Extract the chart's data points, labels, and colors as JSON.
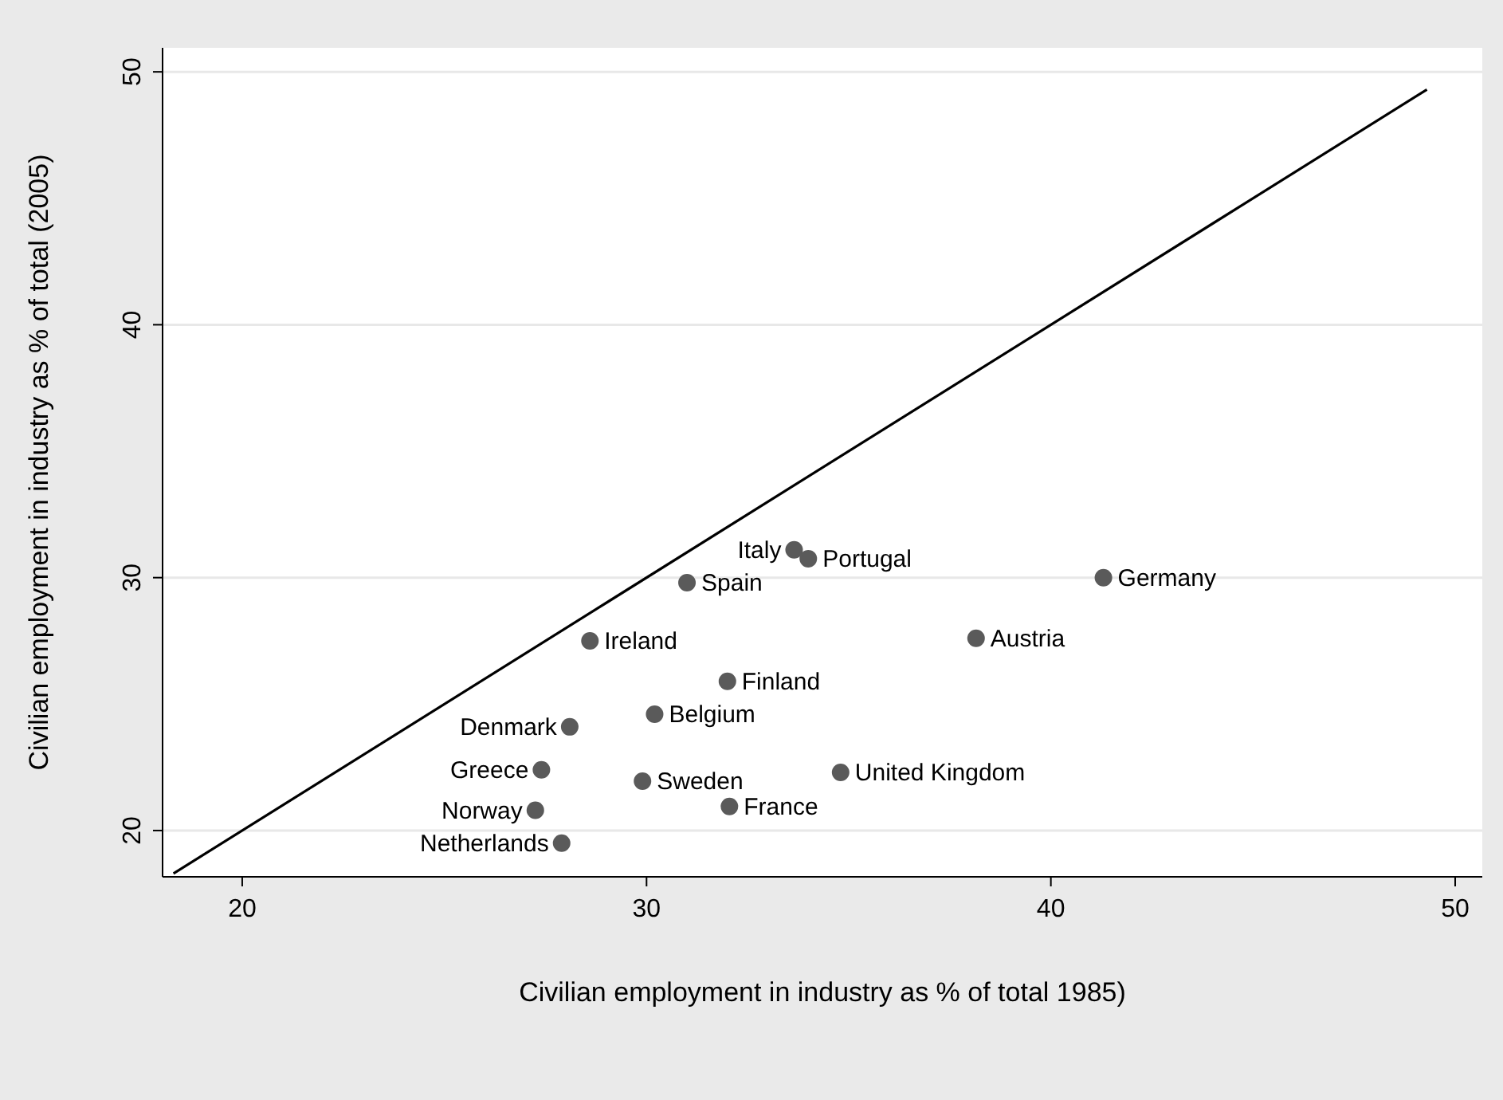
{
  "chart_data": {
    "type": "scatter",
    "xlabel": "Civilian employment in industry as % of total 1985)",
    "ylabel": "Civilian employment in industry as % of total (2005)",
    "xlim": [
      18.03,
      50.67
    ],
    "ylim": [
      18.17,
      50.95
    ],
    "xticks": [
      20,
      30,
      40,
      50
    ],
    "yticks": [
      20,
      30,
      40,
      50
    ],
    "grid": "y",
    "marker": "circle",
    "series": [
      {
        "color": "#5a5a5a",
        "x": [
          33.65,
          34.0,
          31.0,
          41.3,
          28.6,
          38.15,
          32.0,
          30.2,
          28.1,
          27.4,
          29.9,
          34.8,
          27.25,
          32.05,
          27.9
        ],
        "values": [
          31.1,
          30.75,
          29.8,
          30.0,
          27.5,
          27.6,
          25.9,
          24.6,
          24.1,
          22.4,
          21.95,
          22.3,
          20.8,
          20.95,
          19.5
        ],
        "value_labels": [
          "Italy",
          "Portugal",
          "Spain",
          "Germany",
          "Ireland",
          "Austria",
          "Finland",
          "Belgium",
          "Denmark",
          "Greece",
          "Sweden",
          "United Kingdom",
          "Norway",
          "France",
          "Netherlands"
        ]
      },
      {
        "type": "line",
        "color": "#000000",
        "x": [
          18.3,
          49.3
        ],
        "values": [
          18.3,
          49.3
        ],
        "marker": "none"
      }
    ]
  }
}
